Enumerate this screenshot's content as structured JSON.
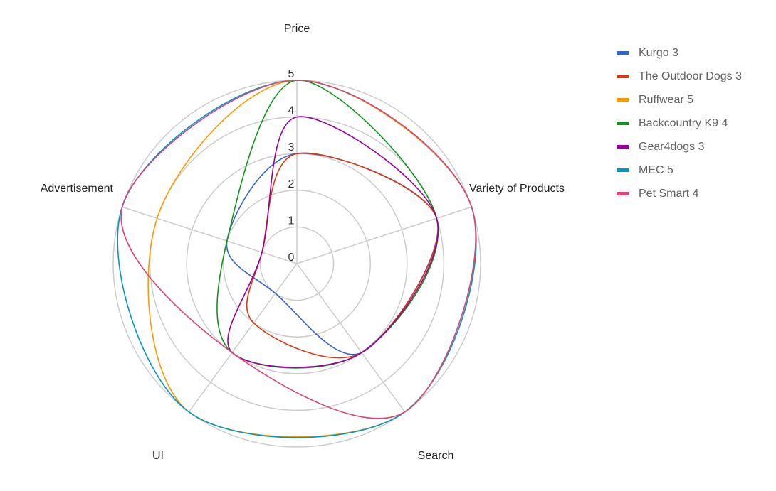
{
  "chart_data": {
    "type": "radar",
    "axes": [
      "Price",
      "Variety of Products",
      "Search",
      "UI",
      "Advertisement"
    ],
    "ticks": [
      "0",
      "1",
      "2",
      "3",
      "4",
      "5"
    ],
    "rlim": [
      0,
      5
    ],
    "grid": true,
    "legend_position": "right",
    "series": [
      {
        "name": "Kurgo 3",
        "color": "#3366cc",
        "values": [
          3,
          4,
          3,
          1,
          2
        ]
      },
      {
        "name": "The Outdoor Dogs 3",
        "color": "#dc3912",
        "values": [
          3,
          4,
          3,
          2,
          1
        ]
      },
      {
        "name": "Ruffwear 5",
        "color": "#ff9900",
        "values": [
          5,
          5,
          5,
          5,
          4
        ]
      },
      {
        "name": "Backcountry K9 4",
        "color": "#109618",
        "values": [
          5,
          4,
          3,
          3,
          2
        ]
      },
      {
        "name": "Gear4dogs 3",
        "color": "#990099",
        "values": [
          4,
          4,
          3,
          3,
          1
        ]
      },
      {
        "name": "MEC 5",
        "color": "#0099c6",
        "values": [
          5,
          5,
          5,
          5,
          5
        ]
      },
      {
        "name": "Pet Smart 4",
        "color": "#dd4477",
        "values": [
          5,
          5,
          5,
          3,
          5
        ]
      }
    ]
  }
}
